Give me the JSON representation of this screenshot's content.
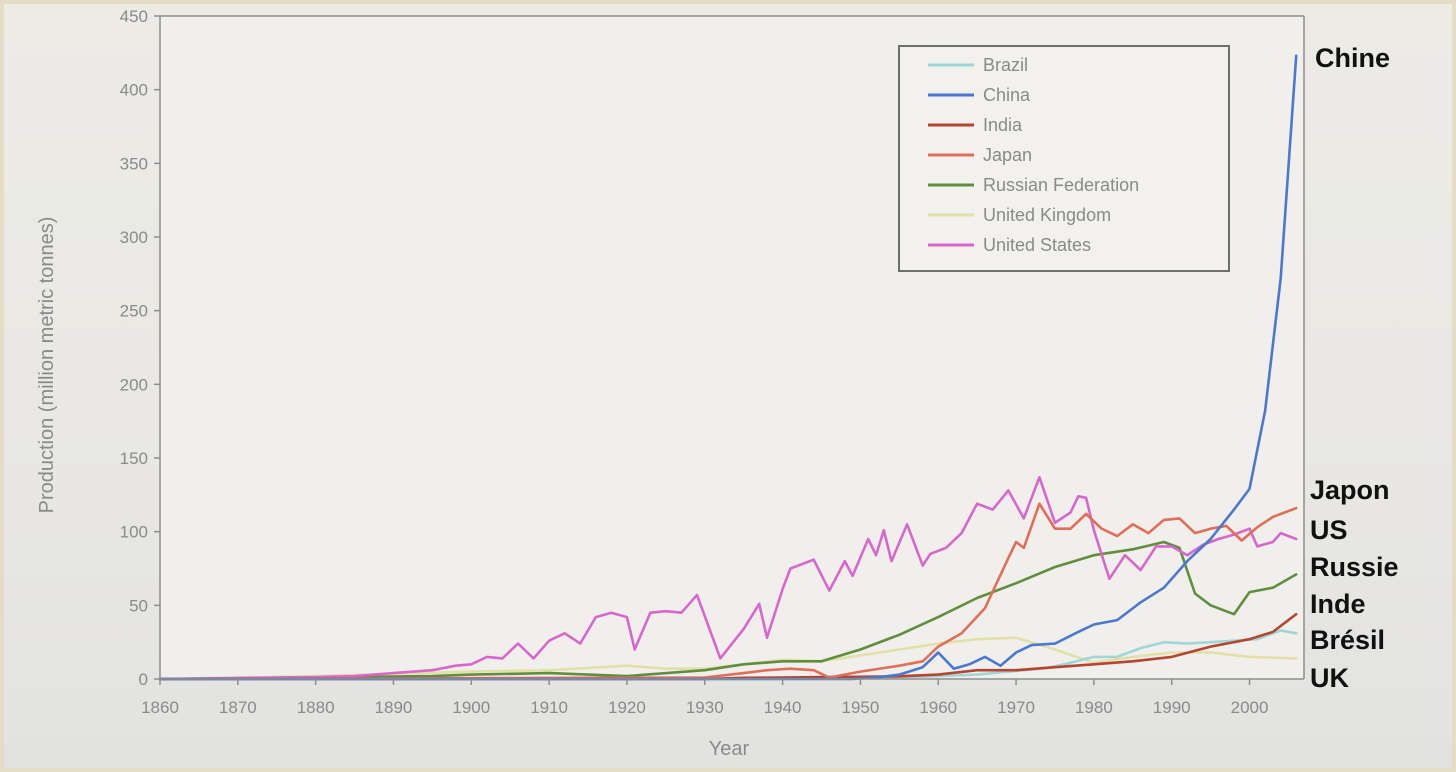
{
  "chart_data": {
    "type": "line",
    "title": "",
    "xlabel": "Year",
    "ylabel": "Production (million metric tonnes)",
    "xlim": [
      1860,
      2007
    ],
    "ylim": [
      0,
      450
    ],
    "x_ticks": [
      1860,
      1870,
      1880,
      1890,
      1900,
      1910,
      1920,
      1930,
      1940,
      1950,
      1960,
      1970,
      1980,
      1990,
      2000
    ],
    "y_ticks": [
      0,
      50,
      100,
      150,
      200,
      250,
      300,
      350,
      400,
      450
    ],
    "grid": false,
    "legend_position": "top-right",
    "series": [
      {
        "name": "Brazil",
        "color": "#9fd7d6",
        "points": [
          [
            1860,
            0
          ],
          [
            1940,
            0
          ],
          [
            1950,
            0.8
          ],
          [
            1955,
            1.2
          ],
          [
            1960,
            2
          ],
          [
            1965,
            3
          ],
          [
            1970,
            5.4
          ],
          [
            1974,
            7.5
          ],
          [
            1977,
            11
          ],
          [
            1980,
            15
          ],
          [
            1983,
            15
          ],
          [
            1986,
            21
          ],
          [
            1989,
            25
          ],
          [
            1992,
            24
          ],
          [
            1995,
            25
          ],
          [
            1998,
            26
          ],
          [
            2001,
            27
          ],
          [
            2004,
            33
          ],
          [
            2006,
            31
          ]
        ]
      },
      {
        "name": "China",
        "color": "#4a78d0",
        "points": [
          [
            1860,
            0
          ],
          [
            1949,
            0
          ],
          [
            1952,
            1
          ],
          [
            1955,
            3
          ],
          [
            1958,
            8
          ],
          [
            1960,
            18
          ],
          [
            1962,
            7
          ],
          [
            1964,
            10
          ],
          [
            1966,
            15
          ],
          [
            1968,
            9
          ],
          [
            1970,
            18
          ],
          [
            1972,
            23
          ],
          [
            1975,
            24
          ],
          [
            1978,
            32
          ],
          [
            1980,
            37
          ],
          [
            1983,
            40
          ],
          [
            1986,
            52
          ],
          [
            1989,
            62
          ],
          [
            1992,
            80
          ],
          [
            1995,
            95
          ],
          [
            1998,
            115
          ],
          [
            2000,
            129
          ],
          [
            2002,
            182
          ],
          [
            2004,
            272
          ],
          [
            2006,
            423
          ]
        ]
      },
      {
        "name": "India",
        "color": "#b5452f",
        "points": [
          [
            1860,
            0
          ],
          [
            1930,
            0
          ],
          [
            1935,
            0.8
          ],
          [
            1940,
            1
          ],
          [
            1945,
            1.3
          ],
          [
            1950,
            1.5
          ],
          [
            1955,
            1.8
          ],
          [
            1960,
            3
          ],
          [
            1965,
            6
          ],
          [
            1970,
            6
          ],
          [
            1975,
            8
          ],
          [
            1980,
            10
          ],
          [
            1985,
            12
          ],
          [
            1990,
            15
          ],
          [
            1995,
            22
          ],
          [
            2000,
            27
          ],
          [
            2003,
            32
          ],
          [
            2006,
            44
          ]
        ]
      },
      {
        "name": "Japan",
        "color": "#e06e58",
        "points": [
          [
            1860,
            0
          ],
          [
            1930,
            1
          ],
          [
            1935,
            4
          ],
          [
            1938,
            6
          ],
          [
            1941,
            7
          ],
          [
            1944,
            6
          ],
          [
            1946,
            1
          ],
          [
            1950,
            5
          ],
          [
            1955,
            9
          ],
          [
            1958,
            12
          ],
          [
            1960,
            22
          ],
          [
            1963,
            31
          ],
          [
            1966,
            48
          ],
          [
            1969,
            82
          ],
          [
            1970,
            93
          ],
          [
            1971,
            89
          ],
          [
            1973,
            119
          ],
          [
            1975,
            102
          ],
          [
            1977,
            102
          ],
          [
            1979,
            112
          ],
          [
            1981,
            102
          ],
          [
            1983,
            97
          ],
          [
            1985,
            105
          ],
          [
            1987,
            99
          ],
          [
            1989,
            108
          ],
          [
            1991,
            109
          ],
          [
            1993,
            99
          ],
          [
            1995,
            102
          ],
          [
            1997,
            104
          ],
          [
            1999,
            94
          ],
          [
            2001,
            103
          ],
          [
            2003,
            110
          ],
          [
            2006,
            116
          ]
        ]
      },
      {
        "name": "Russian Federation",
        "color": "#5f8f3e",
        "points": [
          [
            1860,
            0
          ],
          [
            1895,
            2
          ],
          [
            1900,
            3
          ],
          [
            1910,
            4
          ],
          [
            1920,
            2
          ],
          [
            1930,
            6
          ],
          [
            1935,
            10
          ],
          [
            1940,
            12
          ],
          [
            1945,
            12
          ],
          [
            1950,
            20
          ],
          [
            1955,
            30
          ],
          [
            1960,
            42
          ],
          [
            1965,
            55
          ],
          [
            1970,
            65
          ],
          [
            1975,
            76
          ],
          [
            1980,
            84
          ],
          [
            1985,
            88
          ],
          [
            1989,
            93
          ],
          [
            1991,
            89
          ],
          [
            1993,
            58
          ],
          [
            1995,
            50
          ],
          [
            1998,
            44
          ],
          [
            2000,
            59
          ],
          [
            2003,
            62
          ],
          [
            2006,
            71
          ]
        ]
      },
      {
        "name": "United Kingdom",
        "color": "#e3e0a6",
        "points": [
          [
            1860,
            0
          ],
          [
            1880,
            2
          ],
          [
            1890,
            3.5
          ],
          [
            1900,
            5
          ],
          [
            1910,
            6
          ],
          [
            1920,
            9
          ],
          [
            1925,
            7
          ],
          [
            1930,
            7
          ],
          [
            1935,
            10
          ],
          [
            1940,
            13
          ],
          [
            1945,
            12
          ],
          [
            1950,
            16
          ],
          [
            1955,
            20
          ],
          [
            1960,
            24
          ],
          [
            1965,
            27
          ],
          [
            1970,
            28
          ],
          [
            1975,
            20
          ],
          [
            1980,
            11
          ],
          [
            1985,
            15
          ],
          [
            1990,
            18
          ],
          [
            1995,
            18
          ],
          [
            2000,
            15
          ],
          [
            2006,
            14
          ]
        ]
      },
      {
        "name": "United States",
        "color": "#d867cd",
        "points": [
          [
            1860,
            0
          ],
          [
            1875,
            1
          ],
          [
            1880,
            1.3
          ],
          [
            1885,
            2
          ],
          [
            1890,
            4
          ],
          [
            1895,
            6
          ],
          [
            1898,
            9
          ],
          [
            1900,
            10
          ],
          [
            1902,
            15
          ],
          [
            1904,
            14
          ],
          [
            1906,
            24
          ],
          [
            1908,
            14
          ],
          [
            1910,
            26
          ],
          [
            1912,
            31
          ],
          [
            1914,
            24
          ],
          [
            1916,
            42
          ],
          [
            1918,
            45
          ],
          [
            1920,
            42
          ],
          [
            1921,
            20
          ],
          [
            1923,
            45
          ],
          [
            1925,
            46
          ],
          [
            1927,
            45
          ],
          [
            1929,
            57
          ],
          [
            1932,
            14
          ],
          [
            1935,
            34
          ],
          [
            1937,
            51
          ],
          [
            1938,
            28
          ],
          [
            1940,
            61
          ],
          [
            1941,
            75
          ],
          [
            1944,
            81
          ],
          [
            1946,
            60
          ],
          [
            1948,
            80
          ],
          [
            1949,
            70
          ],
          [
            1951,
            95
          ],
          [
            1952,
            84
          ],
          [
            1953,
            101
          ],
          [
            1954,
            80
          ],
          [
            1956,
            105
          ],
          [
            1958,
            77
          ],
          [
            1959,
            85
          ],
          [
            1961,
            89
          ],
          [
            1963,
            99
          ],
          [
            1965,
            119
          ],
          [
            1967,
            115
          ],
          [
            1969,
            128
          ],
          [
            1971,
            109
          ],
          [
            1973,
            137
          ],
          [
            1975,
            106
          ],
          [
            1977,
            113
          ],
          [
            1978,
            124
          ],
          [
            1979,
            123
          ],
          [
            1980,
            101
          ],
          [
            1982,
            68
          ],
          [
            1984,
            84
          ],
          [
            1986,
            74
          ],
          [
            1988,
            90
          ],
          [
            1990,
            90
          ],
          [
            1992,
            84
          ],
          [
            1994,
            91
          ],
          [
            1996,
            95
          ],
          [
            1998,
            98
          ],
          [
            2000,
            102
          ],
          [
            2001,
            90
          ],
          [
            2003,
            93
          ],
          [
            2004,
            99
          ],
          [
            2006,
            95
          ]
        ]
      }
    ],
    "annotations": [
      {
        "label": "Chine",
        "y": 423
      },
      {
        "label": "Japon",
        "y": 128
      },
      {
        "label": "US",
        "y": 101
      },
      {
        "label": "Russie",
        "y": 76
      },
      {
        "label": "Inde",
        "y": 51
      },
      {
        "label": "Brésil",
        "y": 27
      },
      {
        "label": "UK",
        "y": 0
      }
    ]
  }
}
